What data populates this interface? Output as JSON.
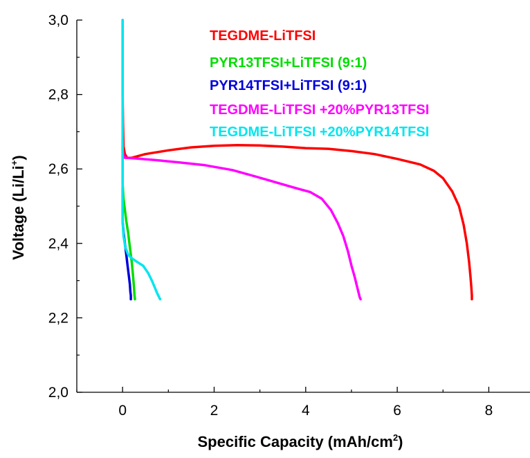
{
  "chart_data": {
    "type": "line",
    "title": "",
    "xlabel_main": "Specific Capacity (mAh/cm",
    "xlabel_sup": "2",
    "xlabel_end": ")",
    "ylabel_main": "Voltage (Li/Li",
    "ylabel_sup": "+",
    "ylabel_end": ")",
    "xlim": [
      -1,
      8.9
    ],
    "ylim": [
      2.0,
      3.0
    ],
    "xticks": [
      0,
      2,
      4,
      6,
      8
    ],
    "yticks": [
      2.0,
      2.2,
      2.4,
      2.6,
      2.8,
      3.0
    ],
    "xtick_labels": [
      "0",
      "2",
      "4",
      "6",
      "8"
    ],
    "ytick_labels": [
      "2,0",
      "2,2",
      "2,4",
      "2,6",
      "2,8",
      "3,0"
    ],
    "grid": false,
    "legend_position": "top-right",
    "series": [
      {
        "name": "TEGDME-LiTFSI",
        "color": "#ff0000",
        "x": [
          0.0,
          0.0,
          0.0,
          0.01,
          0.02,
          0.05,
          0.1,
          0.2,
          0.5,
          1.0,
          1.5,
          2.0,
          2.5,
          3.0,
          3.5,
          4.0,
          4.5,
          5.0,
          5.5,
          6.0,
          6.5,
          6.8,
          7.0,
          7.2,
          7.35,
          7.45,
          7.52,
          7.57,
          7.6,
          7.62,
          7.63,
          7.63
        ],
        "y": [
          3.0,
          2.9,
          2.8,
          2.72,
          2.66,
          2.64,
          2.63,
          2.63,
          2.64,
          2.65,
          2.658,
          2.662,
          2.664,
          2.663,
          2.66,
          2.656,
          2.654,
          2.648,
          2.64,
          2.627,
          2.612,
          2.595,
          2.575,
          2.54,
          2.5,
          2.45,
          2.4,
          2.35,
          2.31,
          2.28,
          2.26,
          2.25
        ]
      },
      {
        "name": "PYR13TFSI+LiTFSI (9:1)",
        "color": "#00dd00",
        "x": [
          0.0,
          0.0,
          0.02,
          0.05,
          0.08,
          0.12,
          0.16,
          0.2,
          0.23,
          0.25,
          0.26,
          0.27
        ],
        "y": [
          2.66,
          2.56,
          2.52,
          2.49,
          2.46,
          2.43,
          2.39,
          2.35,
          2.31,
          2.28,
          2.26,
          2.25
        ]
      },
      {
        "name": "PYR14TFSI+LiTFSI (9:1)",
        "color": "#0000dd",
        "x": [
          0.0,
          0.0,
          0.02,
          0.05,
          0.08,
          0.11,
          0.14,
          0.16,
          0.17,
          0.18,
          0.18
        ],
        "y": [
          2.55,
          2.46,
          2.43,
          2.4,
          2.37,
          2.34,
          2.31,
          2.29,
          2.27,
          2.26,
          2.25
        ]
      },
      {
        "name": "TEGDME-LiTFSI +20%PYR13TFSI",
        "color": "#ff00ff",
        "x": [
          0.0,
          0.0,
          0.02,
          0.05,
          0.1,
          0.3,
          0.7,
          1.2,
          1.8,
          2.4,
          2.9,
          3.4,
          3.8,
          4.1,
          4.35,
          4.55,
          4.7,
          4.82,
          4.92,
          5.0,
          5.07,
          5.12,
          5.16,
          5.18,
          5.2
        ],
        "y": [
          2.68,
          2.65,
          2.635,
          2.63,
          2.63,
          2.628,
          2.624,
          2.618,
          2.61,
          2.597,
          2.58,
          2.562,
          2.548,
          2.538,
          2.52,
          2.49,
          2.455,
          2.42,
          2.38,
          2.34,
          2.31,
          2.285,
          2.265,
          2.255,
          2.25
        ]
      },
      {
        "name": "TEGDME-LiTFSI +20%PYR14TFSI",
        "color": "#00e5ee",
        "x": [
          0.0,
          0.0,
          0.0,
          0.0,
          0.02,
          0.06,
          0.12,
          0.2,
          0.32,
          0.45,
          0.56,
          0.64,
          0.71,
          0.76,
          0.8,
          0.82
        ],
        "y": [
          3.0,
          2.8,
          2.6,
          2.46,
          2.42,
          2.39,
          2.37,
          2.36,
          2.35,
          2.34,
          2.32,
          2.3,
          2.28,
          2.265,
          2.255,
          2.25
        ]
      }
    ]
  }
}
